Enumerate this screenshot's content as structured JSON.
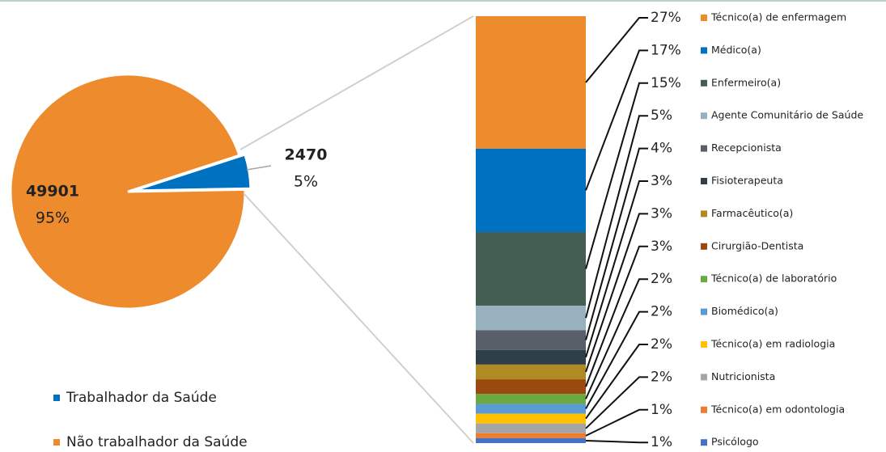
{
  "chart_data": [
    {
      "type": "pie",
      "categories": [
        "Trabalhador da Saúde",
        "Não trabalhador da Saúde"
      ],
      "values": [
        2470,
        49901
      ],
      "percent_values": [
        5,
        95
      ],
      "percent_labels": [
        "5%",
        "95%"
      ],
      "colors": [
        "#0070c0",
        "#ed8b2d"
      ]
    },
    {
      "type": "bar",
      "categories": [
        "Técnico(a) de enfermagem",
        "Médico(a)",
        "Enfermeiro(a)",
        "Agente Comunitário de Saúde",
        "Recepcionista",
        "Fisioterapeuta",
        "Farmacêutico(a)",
        "Cirurgião-Dentista",
        "Técnico(a) de laboratório",
        "Biomédico(a)",
        "Técnico(a) em radiologia",
        "Nutricionista",
        "Técnico(a) em odontologia",
        "Psicólogo"
      ],
      "values": [
        27,
        17,
        15,
        5,
        4,
        3,
        3,
        3,
        2,
        2,
        2,
        2,
        1,
        1
      ],
      "value_labels": [
        "27%",
        "17%",
        "15%",
        "5%",
        "4%",
        "3%",
        "3%",
        "3%",
        "2%",
        "2%",
        "2%",
        "2%",
        "1%",
        "1%"
      ],
      "colors": [
        "#ed8b2d",
        "#0070c0",
        "#445f52",
        "#97b1bf",
        "#595f68",
        "#2f3f48",
        "#b08a22",
        "#9a4a0e",
        "#6aa841",
        "#5b9bd5",
        "#ffc000",
        "#a5a5a5",
        "#ed7d31",
        "#4472c4"
      ]
    }
  ]
}
